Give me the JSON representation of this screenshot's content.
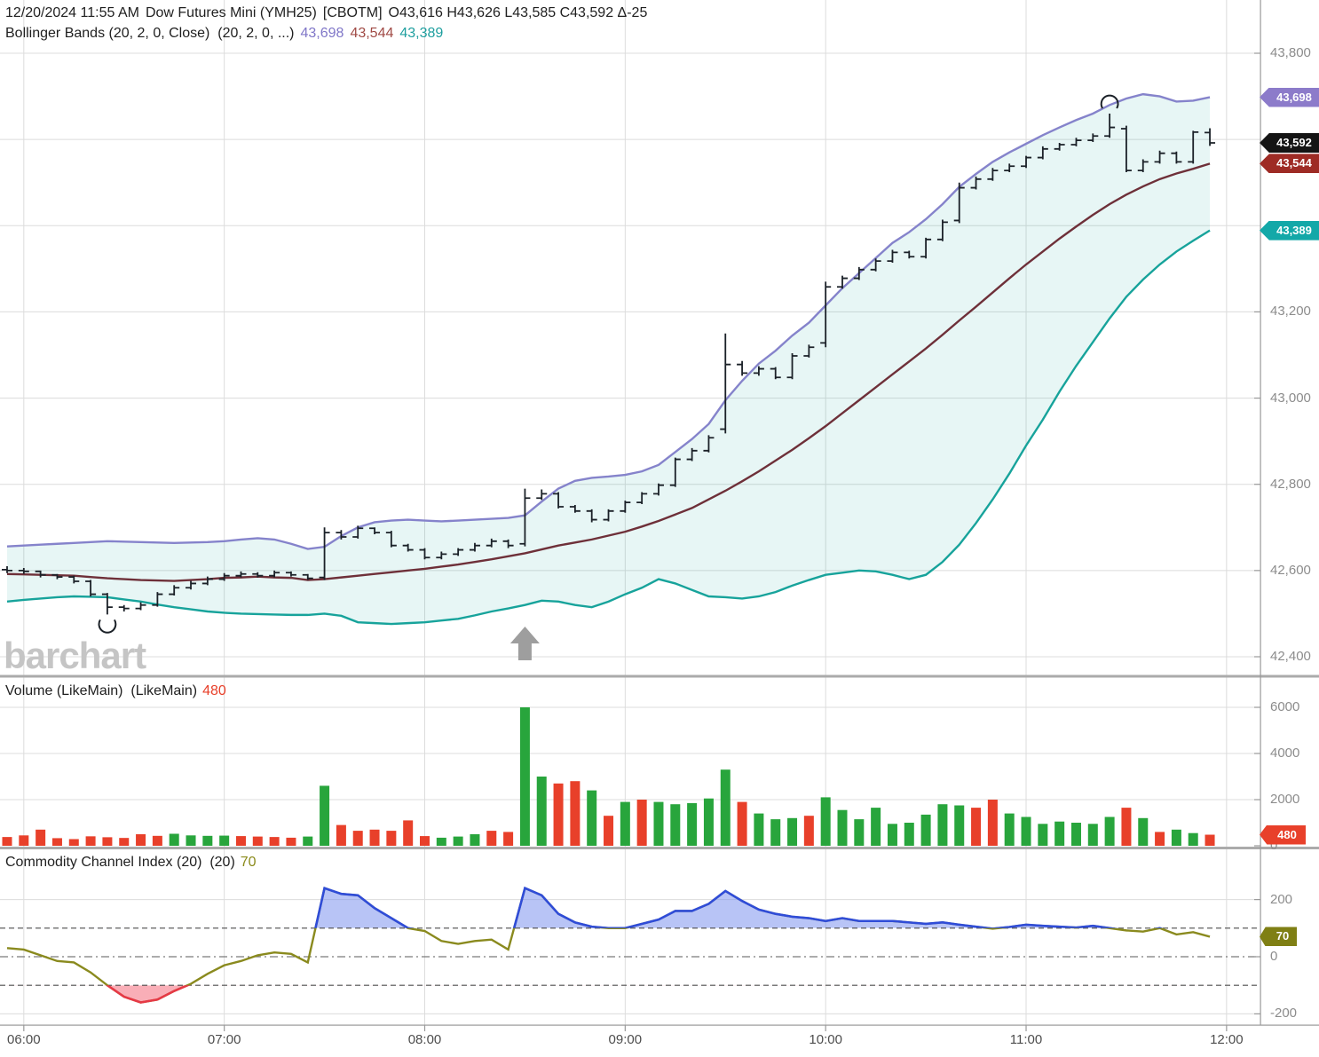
{
  "header": {
    "datetime": "12/20/2024 11:55 AM",
    "symbol": "Dow Futures Mini (YMH25)",
    "exchange": "[CBOTM]",
    "ohlc": "O43,616 H43,626 L43,585 C43,592 Δ-25",
    "indicator_label": "Bollinger Bands (20, 2, 0, Close)  (20, 2, 0, ...)",
    "bb_upper": "43,698",
    "bb_middle": "43,544",
    "bb_lower": "43,389"
  },
  "watermark": "barchart",
  "panels": {
    "volume": {
      "label": "Volume (LikeMain)  (LikeMain)",
      "value": "480"
    },
    "cci": {
      "label": "Commodity Channel Index (20)  (20)",
      "value": "70"
    }
  },
  "axes": {
    "price_labels": [
      {
        "label": "43,800",
        "value": 43800
      },
      {
        "label": "43,200",
        "value": 43200
      },
      {
        "label": "43,000",
        "value": 43000
      },
      {
        "label": "42,800",
        "value": 42800
      },
      {
        "label": "42,600",
        "value": 42600
      },
      {
        "label": "42,400",
        "value": 42400
      }
    ],
    "price_gridlines": [
      43800,
      43600,
      43400,
      43200,
      43000,
      42800,
      42600,
      42400
    ],
    "volume_labels": [
      {
        "label": "6000",
        "value": 6000
      },
      {
        "label": "4000",
        "value": 4000
      },
      {
        "label": "2000",
        "value": 2000
      },
      {
        "label": "0",
        "value": 0
      }
    ],
    "cci_labels": [
      {
        "label": "200",
        "value": 200
      },
      {
        "label": "0",
        "value": 0
      },
      {
        "label": "-200",
        "value": -200
      }
    ],
    "cci_thresholds": [
      100,
      -100
    ],
    "time_labels": [
      "06:00",
      "07:00",
      "08:00",
      "09:00",
      "10:00",
      "11:00",
      "12:00"
    ],
    "badges": [
      {
        "label": "43,698",
        "value": 43698,
        "panel": "price",
        "color_key": "badge_upper"
      },
      {
        "label": "43,592",
        "value": 43592,
        "panel": "price",
        "color_key": "badge_close"
      },
      {
        "label": "43,544",
        "value": 43544,
        "panel": "price",
        "color_key": "badge_middle"
      },
      {
        "label": "43,389",
        "value": 43389,
        "panel": "price",
        "color_key": "badge_lower"
      },
      {
        "label": "480",
        "value": 480,
        "panel": "volume",
        "color_key": "badge_volume"
      },
      {
        "label": "70",
        "value": 70,
        "panel": "cci",
        "color_key": "badge_cci"
      }
    ]
  },
  "colors": {
    "bb_upper_line": "#8583cb",
    "bb_middle_line": "#6e3039",
    "bb_lower_line": "#17a39b",
    "band_fill": "rgba(23,163,155,0.10)",
    "ohlc_bar": "#1b2128",
    "vol_up": "#28a53c",
    "vol_down": "#e8402a",
    "cci_line": "#8a8a1e",
    "cci_above": "#2f4cd8",
    "cci_below": "#e63946",
    "cci_above_fill": "rgba(97,125,236,0.45)",
    "cci_below_fill": "rgba(244,93,111,0.5)",
    "grid": "#dcdcdc",
    "axis_border": "#9a9a9a",
    "divider": "#ababab",
    "header_text": "#1f1f1f",
    "axis_text": "#8c8c8c",
    "time_text": "#4d4d4d",
    "upper_text": "#8077c8",
    "middle_text": "#a04a45",
    "lower_text": "#1d9e9e",
    "volume_value_text": "#e8402a",
    "cci_value_text": "#8a8a1a",
    "watermark": "#c5c5c5",
    "arrow": "#9e9e9e",
    "badge_upper": "#8c7bca",
    "badge_close": "#141414",
    "badge_middle": "#9e2b25",
    "badge_lower": "#13a8a8",
    "badge_volume": "#e8402a",
    "badge_cci": "#7f7f14"
  },
  "chart_data": [
    {
      "type": "ohlc",
      "title": "Dow Futures Mini (YMH25) [CBOTM] 5-minute OHLC bars with Bollinger Bands (20, 2, 0, Close)",
      "x_axis": "time, 5-minute bars from 05:55 to 11:55",
      "time_first": "05:55",
      "time_last": "11:55",
      "interval_minutes": 5,
      "ylim": [
        42400,
        43800
      ],
      "open": [
        42602,
        42600,
        42598,
        42590,
        42585,
        42575,
        42545,
        42515,
        42512,
        42520,
        42545,
        42560,
        42570,
        42580,
        42588,
        42592,
        42588,
        42595,
        42590,
        42584,
        42688,
        42678,
        42698,
        42688,
        42658,
        42648,
        42630,
        42638,
        42648,
        42658,
        42668,
        42662,
        42768,
        42778,
        42748,
        42738,
        42718,
        42738,
        42758,
        42778,
        42798,
        42858,
        42878,
        42928,
        43078,
        43058,
        43068,
        43048,
        43098,
        43128,
        43258,
        43278,
        43298,
        43318,
        43338,
        43328,
        43368,
        43412,
        43488,
        43508,
        43528,
        43538,
        43558,
        43578,
        43588,
        43598,
        43608,
        43625,
        43528,
        43548,
        43568,
        43548,
        43616
      ],
      "high": [
        42610,
        42606,
        42600,
        42592,
        42588,
        42578,
        42548,
        42520,
        42526,
        42550,
        42566,
        42576,
        42586,
        42594,
        42598,
        42596,
        42600,
        42598,
        42592,
        42700,
        42694,
        42704,
        42700,
        42692,
        42662,
        42652,
        42644,
        42652,
        42664,
        42674,
        42672,
        42790,
        42788,
        42782,
        42752,
        42742,
        42742,
        42762,
        42782,
        42802,
        42862,
        42884,
        42914,
        43150,
        43086,
        43074,
        43072,
        43104,
        43124,
        43270,
        43284,
        43304,
        43324,
        43344,
        43342,
        43372,
        43414,
        43500,
        43514,
        43534,
        43544,
        43562,
        43584,
        43592,
        43604,
        43614,
        43660,
        43632,
        43554,
        43574,
        43572,
        43620,
        43626
      ],
      "low": [
        42594,
        42592,
        42584,
        42580,
        42570,
        42540,
        42498,
        42505,
        42508,
        42516,
        42542,
        42556,
        42566,
        42576,
        42584,
        42584,
        42584,
        42586,
        42578,
        42578,
        42672,
        42674,
        42684,
        42654,
        42644,
        42626,
        42626,
        42634,
        42644,
        42654,
        42652,
        42656,
        42764,
        42744,
        42734,
        42712,
        42714,
        42734,
        42754,
        42774,
        42794,
        42854,
        42874,
        42918,
        43052,
        43052,
        43044,
        43044,
        43094,
        43118,
        43254,
        43274,
        43294,
        43314,
        43324,
        43324,
        43364,
        43406,
        43484,
        43504,
        43524,
        43534,
        43554,
        43574,
        43584,
        43594,
        43604,
        43524,
        43524,
        43544,
        43544,
        43544,
        43585
      ],
      "close": [
        42600,
        42598,
        42590,
        42585,
        42575,
        42545,
        42515,
        42512,
        42520,
        42545,
        42560,
        42570,
        42580,
        42588,
        42592,
        42588,
        42595,
        42590,
        42582,
        42688,
        42678,
        42698,
        42688,
        42658,
        42648,
        42630,
        42638,
        42648,
        42658,
        42668,
        42658,
        42768,
        42778,
        42748,
        42738,
        42718,
        42738,
        42758,
        42778,
        42798,
        42858,
        42878,
        42908,
        43078,
        43058,
        43068,
        43048,
        43098,
        43118,
        43258,
        43278,
        43298,
        43318,
        43338,
        43328,
        43368,
        43408,
        43488,
        43508,
        43528,
        43538,
        43558,
        43578,
        43588,
        43598,
        43608,
        43628,
        43528,
        43548,
        43568,
        43548,
        43617,
        43592
      ],
      "bb_upper": [
        42656,
        42658,
        42660,
        42662,
        42664,
        42666,
        42668,
        42667,
        42666,
        42665,
        42664,
        42665,
        42666,
        42668,
        42672,
        42675,
        42672,
        42662,
        42650,
        42655,
        42680,
        42700,
        42712,
        42716,
        42718,
        42716,
        42714,
        42716,
        42718,
        42720,
        42722,
        42728,
        42760,
        42790,
        42808,
        42815,
        42818,
        42822,
        42830,
        42845,
        42875,
        42905,
        42940,
        42995,
        43040,
        43080,
        43110,
        43145,
        43175,
        43215,
        43255,
        43290,
        43325,
        43360,
        43385,
        43415,
        43450,
        43490,
        43520,
        43548,
        43570,
        43590,
        43610,
        43628,
        43645,
        43660,
        43680,
        43695,
        43705,
        43700,
        43688,
        43690,
        43698
      ],
      "bb_middle": [
        42592,
        42591,
        42590,
        42589,
        42588,
        42585,
        42582,
        42580,
        42578,
        42577,
        42576,
        42578,
        42580,
        42583,
        42584,
        42586,
        42584,
        42583,
        42578,
        42580,
        42584,
        42588,
        42592,
        42596,
        42600,
        42604,
        42609,
        42614,
        42620,
        42626,
        42633,
        42640,
        42649,
        42658,
        42665,
        42672,
        42681,
        42690,
        42702,
        42715,
        42730,
        42745,
        42765,
        42785,
        42807,
        42830,
        42855,
        42880,
        42907,
        42935,
        42965,
        42995,
        43025,
        43055,
        43085,
        43115,
        43147,
        43180,
        43212,
        43245,
        43278,
        43310,
        43340,
        43370,
        43398,
        43425,
        43450,
        43472,
        43491,
        43508,
        43521,
        43532,
        43544
      ],
      "bb_lower": [
        42528,
        42532,
        42535,
        42538,
        42540,
        42539,
        42538,
        42533,
        42528,
        42521,
        42515,
        42510,
        42505,
        42502,
        42500,
        42499,
        42498,
        42497,
        42497,
        42500,
        42495,
        42480,
        42478,
        42476,
        42478,
        42480,
        42484,
        42488,
        42496,
        42505,
        42512,
        42520,
        42530,
        42528,
        42520,
        42515,
        42528,
        42545,
        42560,
        42580,
        42570,
        42555,
        42540,
        42538,
        42535,
        42540,
        42550,
        42565,
        42578,
        42590,
        42595,
        42600,
        42598,
        42590,
        42580,
        42590,
        42620,
        42660,
        42710,
        42765,
        42825,
        42890,
        42950,
        43015,
        43075,
        43130,
        43185,
        43235,
        43275,
        43310,
        43340,
        43365,
        43389
      ],
      "markers": {
        "low_circle_index": 6,
        "high_circle_index": 66,
        "up_arrow_index": 31
      }
    },
    {
      "type": "bar",
      "title": "Volume (LikeMain)",
      "ylim": [
        0,
        6000
      ],
      "values": [
        380,
        450,
        700,
        330,
        290,
        410,
        370,
        340,
        500,
        430,
        520,
        450,
        430,
        440,
        420,
        400,
        380,
        350,
        400,
        2600,
        900,
        650,
        700,
        650,
        1100,
        420,
        350,
        400,
        500,
        650,
        600,
        6000,
        3000,
        2700,
        2800,
        2400,
        1300,
        1900,
        2000,
        1900,
        1800,
        1850,
        2050,
        3300,
        1900,
        1400,
        1150,
        1200,
        1300,
        2100,
        1550,
        1150,
        1650,
        950,
        1000,
        1350,
        1800,
        1750,
        1650,
        2000,
        1400,
        1250,
        950,
        1050,
        1000,
        950,
        1250,
        1650,
        1200,
        600,
        700,
        550,
        480
      ],
      "colors": [
        "r",
        "r",
        "r",
        "r",
        "r",
        "r",
        "r",
        "r",
        "r",
        "r",
        "g",
        "g",
        "g",
        "g",
        "r",
        "r",
        "r",
        "r",
        "g",
        "g",
        "r",
        "r",
        "r",
        "r",
        "r",
        "r",
        "g",
        "g",
        "g",
        "r",
        "r",
        "g",
        "g",
        "r",
        "r",
        "g",
        "r",
        "g",
        "r",
        "g",
        "g",
        "g",
        "g",
        "g",
        "r",
        "g",
        "g",
        "g",
        "r",
        "g",
        "g",
        "g",
        "g",
        "g",
        "g",
        "g",
        "g",
        "g",
        "r",
        "r",
        "g",
        "g",
        "g",
        "g",
        "g",
        "g",
        "g",
        "r",
        "g",
        "r",
        "g",
        "g",
        "r"
      ]
    },
    {
      "type": "line",
      "title": "Commodity Channel Index (20)",
      "ylim": [
        -260,
        260
      ],
      "thresholds": [
        100,
        -100
      ],
      "values": [
        30,
        25,
        5,
        -15,
        -20,
        -55,
        -100,
        -140,
        -160,
        -150,
        -120,
        -95,
        -60,
        -30,
        -15,
        5,
        15,
        10,
        -20,
        240,
        220,
        215,
        170,
        135,
        100,
        90,
        55,
        45,
        55,
        60,
        25,
        240,
        215,
        150,
        120,
        105,
        100,
        100,
        115,
        130,
        160,
        160,
        185,
        230,
        195,
        165,
        150,
        140,
        135,
        125,
        135,
        125,
        125,
        125,
        120,
        115,
        120,
        112,
        105,
        98,
        104,
        112,
        108,
        105,
        102,
        108,
        100,
        92,
        88,
        100,
        78,
        86,
        70
      ]
    }
  ]
}
